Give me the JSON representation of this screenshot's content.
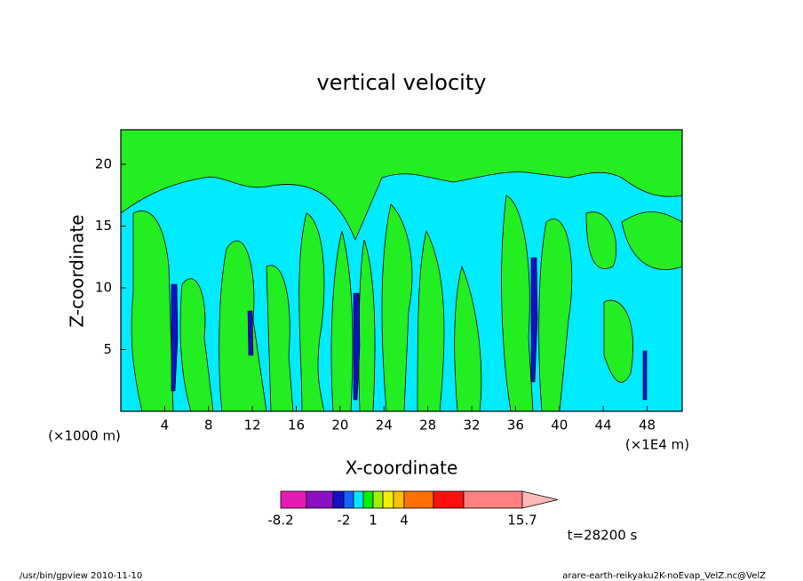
{
  "chart_data": {
    "type": "contour",
    "title": "vertical velocity",
    "xlabel": "X-coordinate",
    "ylabel": "Z-coordinate",
    "x_unit_left": "(×1000 m)",
    "x_unit_right": "(×1E4 m)",
    "xlim": [
      0,
      51.2
    ],
    "xticks": [
      4,
      8,
      12,
      16,
      20,
      24,
      28,
      32,
      36,
      40,
      44,
      48
    ],
    "ylim": [
      0,
      22.8
    ],
    "yticks": [
      5,
      10,
      15,
      20
    ],
    "colorbar": {
      "colors": [
        "#e81ab4",
        "#8a10c0",
        "#1010c8",
        "#1464ff",
        "#00e8ff",
        "#00ee00",
        "#a0f000",
        "#f0f000",
        "#ffc000",
        "#ff7000",
        "#ff1010",
        "#ff8080",
        "#ffb8b8"
      ],
      "ticks": [
        -8.2,
        -2,
        1,
        4,
        15.7
      ]
    },
    "time_label": "t=28200 s",
    "footer_left": "/usr/bin/gpview  2010-11-10",
    "footer_right": "arare-earth-reikyaku2K-noEvap_VelZ.nc@VelZ"
  }
}
